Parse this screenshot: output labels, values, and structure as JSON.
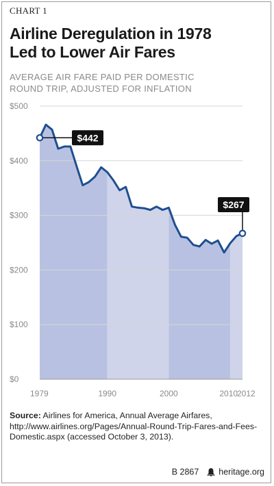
{
  "chart_label": "CHART 1",
  "title_line1": "Airline Deregulation in 1978",
  "title_line2": "Led to Lower Air Fares",
  "subtitle_line1": "AVERAGE AIR FARE PAID PER DOMESTIC",
  "subtitle_line2": "ROUND TRIP, ADJUSTED FOR INFLATION",
  "source_label": "Source:",
  "source_text": "Airlines for America, Annual Average Airfares, http://www.airlines.org/Pages/Annual-Round-Trip-Fares-and-Fees-Domestic.aspx (accessed October 3, 2013).",
  "report_id": "B 2867",
  "site": "heritage.org",
  "colors": {
    "line": "#1e4f8f",
    "fill_dark": "#b9c1e2",
    "fill_light": "#cfd4ea",
    "callout_bg": "#111111",
    "grid": "#d6d6d6"
  },
  "chart_data": {
    "type": "area",
    "xlim": [
      1979,
      2012
    ],
    "ylim": [
      0,
      500
    ],
    "y_ticks": [
      0,
      100,
      200,
      300,
      400,
      500
    ],
    "y_tick_labels": [
      "$0",
      "$100",
      "$200",
      "$300",
      "$400",
      "$500"
    ],
    "x_ticks": [
      1979,
      1990,
      2000,
      2010,
      2012
    ],
    "x_tick_labels": [
      "1979",
      "1990",
      "2000",
      "2010",
      "2012"
    ],
    "grid": true,
    "x": [
      1979,
      1980,
      1981,
      1982,
      1983,
      1984,
      1985,
      1986,
      1987,
      1988,
      1989,
      1990,
      1991,
      1992,
      1993,
      1994,
      1995,
      1996,
      1997,
      1998,
      1999,
      2000,
      2001,
      2002,
      2003,
      2004,
      2005,
      2006,
      2007,
      2008,
      2009,
      2010,
      2011,
      2012
    ],
    "series": [
      {
        "values": [
          442,
          466,
          457,
          422,
          426,
          426,
          390,
          355,
          361,
          371,
          388,
          379,
          364,
          346,
          352,
          316,
          314,
          313,
          310,
          316,
          310,
          314,
          283,
          261,
          259,
          246,
          243,
          255,
          248,
          254,
          232,
          249,
          262,
          267
        ]
      }
    ],
    "annotations": [
      {
        "x": 1979,
        "y": 442,
        "label": "$442"
      },
      {
        "x": 2012,
        "y": 267,
        "label": "$267"
      }
    ]
  }
}
